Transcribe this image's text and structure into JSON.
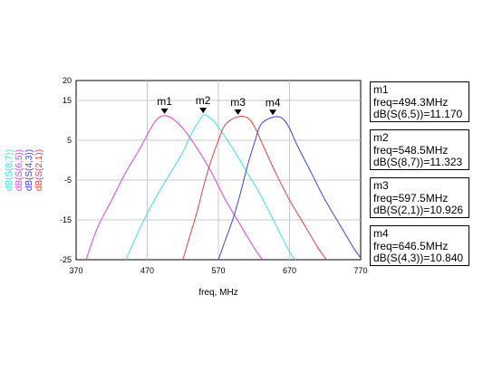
{
  "chart_data": {
    "type": "line",
    "xlabel": "freq, MHz",
    "x_ticks": [
      370,
      470,
      570,
      670,
      770
    ],
    "y_ticks": [
      20,
      15,
      5,
      -5,
      -15,
      -25
    ],
    "xlim": [
      370,
      770
    ],
    "ylim": [
      -25,
      20
    ],
    "grid": true,
    "series": [
      {
        "name": "dB(S(8,7))",
        "color": "#40e0e0",
        "x": [
          440,
          460,
          480,
          500,
          520,
          530,
          540,
          548.5,
          555,
          565,
          575,
          590,
          610,
          630,
          650,
          670,
          678
        ],
        "y": [
          -25,
          -17,
          -10,
          -4,
          2,
          6,
          9,
          11.3,
          11,
          9.5,
          7,
          3,
          -3,
          -9,
          -16,
          -23,
          -25
        ]
      },
      {
        "name": "dB(S(6,5))",
        "color": "#e040e0",
        "x": [
          384,
          400,
          420,
          440,
          460,
          475,
          485,
          494.3,
          505,
          520,
          540,
          560,
          580,
          600,
          620,
          632
        ],
        "y": [
          -25,
          -17,
          -10,
          -3,
          3,
          8,
          10.5,
          11.2,
          10.5,
          8,
          3,
          -3,
          -10,
          -16,
          -22,
          -25
        ]
      },
      {
        "name": "dB(S(4,3))",
        "color": "#4040e0",
        "x": [
          570,
          580,
          590,
          600,
          610,
          620,
          630,
          646.5,
          660,
          670,
          680,
          700,
          720,
          740,
          760,
          772
        ],
        "y": [
          -25,
          -20,
          -15,
          -9,
          -2,
          4,
          9,
          10.8,
          10.5,
          8,
          4,
          -3,
          -10,
          -16,
          -22,
          -25
        ]
      },
      {
        "name": "dB(S(2,1))",
        "color": "#e04040",
        "x": [
          520,
          530,
          540,
          550,
          560,
          570,
          580,
          597.5,
          612,
          622,
          632,
          650,
          670,
          690,
          710,
          722
        ],
        "y": [
          -25,
          -19,
          -13,
          -6,
          0,
          5,
          9,
          10.9,
          10.5,
          8,
          4,
          -3,
          -10,
          -16,
          -22,
          -25
        ]
      }
    ],
    "markers": [
      {
        "label": "m1",
        "x": 494.3,
        "y": 11.17
      },
      {
        "label": "m2",
        "x": 548.5,
        "y": 11.323
      },
      {
        "label": "m3",
        "x": 597.5,
        "y": 10.926
      },
      {
        "label": "m4",
        "x": 646.5,
        "y": 10.84
      }
    ]
  },
  "marker_readouts": [
    {
      "name": "m1",
      "freq": "freq=494.3MHz",
      "value": "dB(S(6,5))=11.170"
    },
    {
      "name": "m2",
      "freq": "freq=548.5MHz",
      "value": "dB(S(8,7))=11.323"
    },
    {
      "name": "m3",
      "freq": "freq=597.5MHz",
      "value": "dB(S(2,1))=10.926"
    },
    {
      "name": "m4",
      "freq": "freq=646.5MHz",
      "value": "dB(S(4,3))=10.840"
    }
  ]
}
